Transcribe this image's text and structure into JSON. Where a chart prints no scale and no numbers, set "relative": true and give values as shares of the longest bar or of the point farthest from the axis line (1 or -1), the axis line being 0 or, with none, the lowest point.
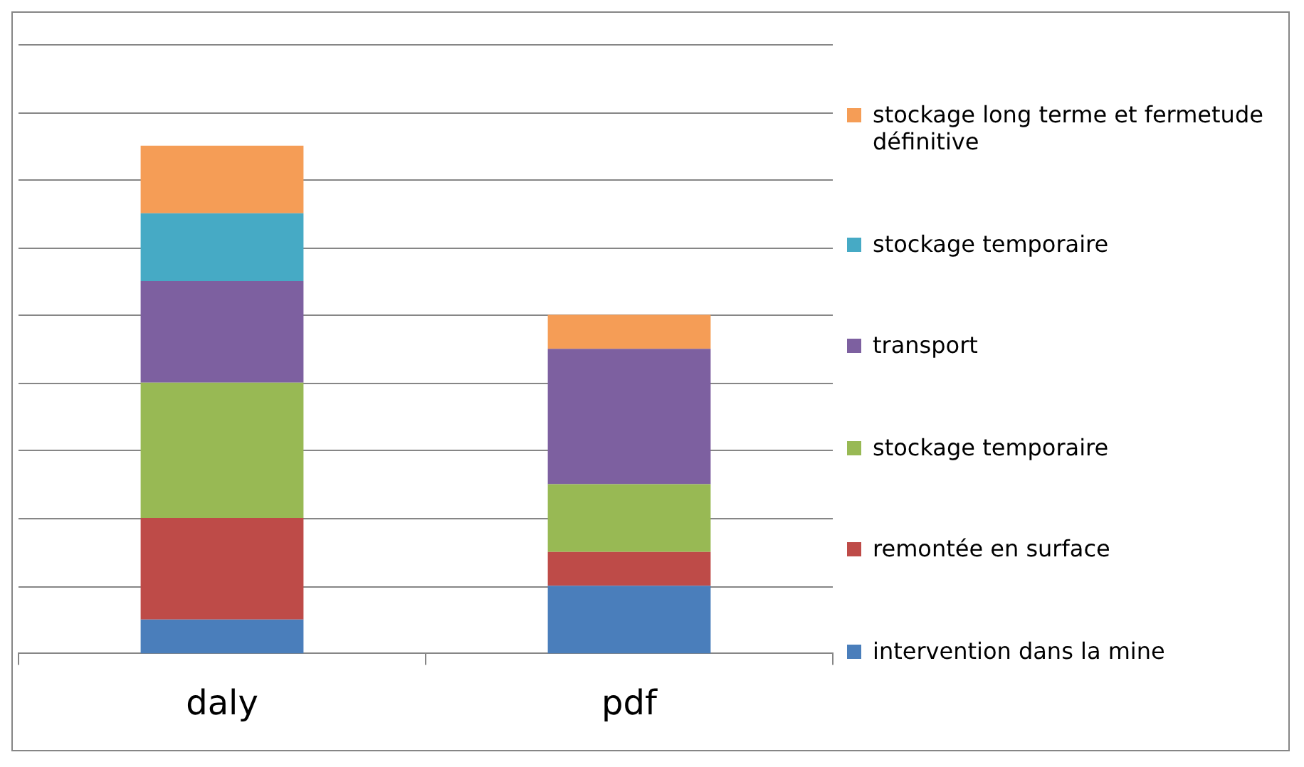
{
  "chart_data": {
    "type": "bar",
    "stacked": true,
    "relative": true,
    "grid": "y",
    "legend": "right",
    "categories": [
      "daly",
      "pdf"
    ],
    "series": [
      {
        "name": "intervention dans la mine",
        "color": "#4a7ebb",
        "values": [
          0.0667,
          0.1333
        ]
      },
      {
        "name": "remontée en surface",
        "color": "#be4b48",
        "values": [
          0.2,
          0.0667
        ]
      },
      {
        "name": "stockage temporaire",
        "color": "#98b954",
        "values": [
          0.2667,
          0.1333
        ]
      },
      {
        "name": "transport",
        "color": "#7d60a0",
        "values": [
          0.2,
          0.2667
        ]
      },
      {
        "name": "stockage temporaire",
        "color": "#46aac5",
        "values": [
          0.1333,
          0
        ]
      },
      {
        "name": "stockage long terme et fermetude définitive",
        "color": "#f59d56",
        "values": [
          0.1333,
          0.0667
        ]
      }
    ]
  }
}
